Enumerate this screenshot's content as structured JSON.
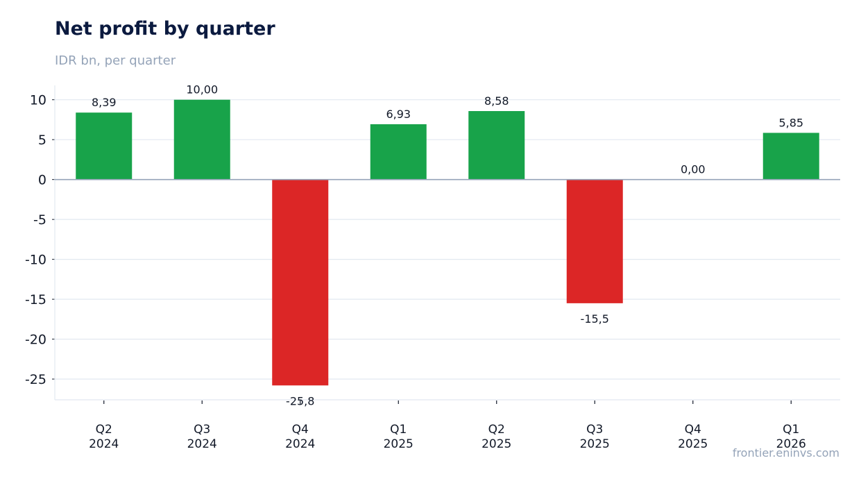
{
  "title": "Net profit by quarter",
  "subtitle": "IDR bn, per quarter",
  "watermark": "frontier.eninvs.com",
  "colors": {
    "positive": "#18a34a",
    "negative": "#dc2626",
    "zero_line": "#94a3b8",
    "grid": "#e2e8f0",
    "text": "#111827"
  },
  "chart_data": {
    "type": "bar",
    "categories": [
      [
        "Q2",
        "2024"
      ],
      [
        "Q3",
        "2024"
      ],
      [
        "Q4",
        "2024"
      ],
      [
        "Q1",
        "2025"
      ],
      [
        "Q2",
        "2025"
      ],
      [
        "Q3",
        "2025"
      ],
      [
        "Q4",
        "2025"
      ],
      [
        "Q1",
        "2026"
      ]
    ],
    "values": [
      8.39,
      10.0,
      -25.8,
      6.93,
      8.58,
      -15.5,
      0.0,
      5.85
    ],
    "data_labels": [
      "8,39",
      "10,00",
      "-25,8",
      "6,93",
      "8,58",
      "-15,5",
      "0,00",
      "5,85"
    ],
    "yticks": [
      10,
      5,
      0,
      -5,
      -10,
      -15,
      -20,
      -25
    ],
    "ylim": [
      -27.6,
      11.8
    ],
    "grid": true,
    "legend": "none"
  }
}
